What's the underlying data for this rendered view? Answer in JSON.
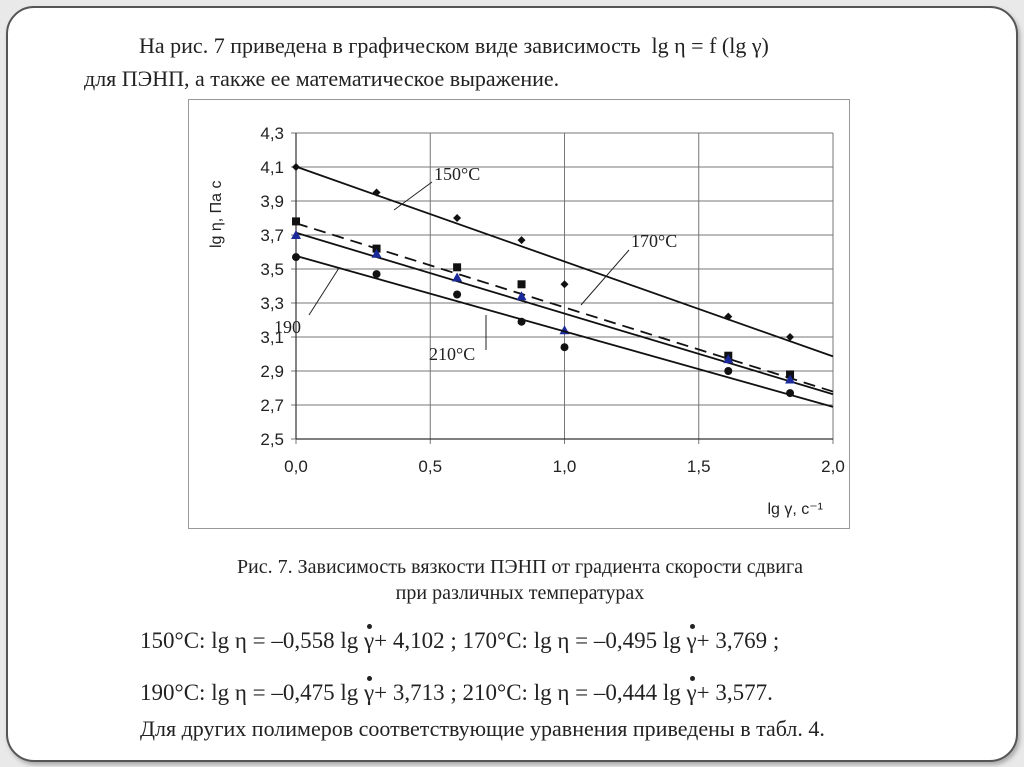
{
  "intro": {
    "line1": "На рис. 7 приведена в графическом виде  зависимость",
    "formula": "lg η = f (lg γ)",
    "line2": "для ПЭНП, а также ее математическое выражение."
  },
  "caption": {
    "line1": "Рис. 7. Зависимость вязкости ПЭНП от градиента скорости сдвига",
    "line2": "при различных температурах"
  },
  "equations": [
    {
      "temp": "150°C:",
      "lhs": "lg η = –0,558 lg",
      "rhs": "+ 4,102 ;"
    },
    {
      "temp": "170°C:",
      "lhs": "lg η = –0,495 lg",
      "rhs": "+ 3,769 ;"
    },
    {
      "temp": "190°C:",
      "lhs": "lg η = –0,475 lg",
      "rhs": "+ 3,713 ;"
    },
    {
      "temp": "210°C:",
      "lhs": "lg η = –0,444 lg",
      "rhs": "+ 3,577."
    }
  ],
  "gamma": "γ",
  "footer": "Для других полимеров соответствующие уравнения приведены в табл. 4.",
  "chart_data": {
    "type": "scatter",
    "xlabel": "lg γ, c⁻¹",
    "ylabel": "lg η, Па с",
    "xlim": [
      0,
      2
    ],
    "ylim": [
      2.5,
      4.3
    ],
    "xticks": [
      "0,0",
      "0,5",
      "1,0",
      "1,5",
      "2,0"
    ],
    "yticks": [
      "2,5",
      "2,7",
      "2,9",
      "3,1",
      "3,3",
      "3,5",
      "3,7",
      "3,9",
      "4,1",
      "4,3"
    ],
    "grid": true,
    "annotations": [
      "150°C",
      "170°C",
      "190",
      "210°C"
    ],
    "series": [
      {
        "name": "150°C",
        "marker": "diamond",
        "color": "#111111",
        "line": "solid",
        "slope": -0.558,
        "intercept": 4.102,
        "x": [
          0,
          0.3,
          0.6,
          0.84,
          1.0,
          1.61,
          1.84
        ],
        "y": [
          4.1,
          3.95,
          3.8,
          3.67,
          3.41,
          3.22,
          3.1
        ]
      },
      {
        "name": "170°C",
        "marker": "square",
        "color": "#111111",
        "line": "dashed",
        "slope": -0.495,
        "intercept": 3.769,
        "x": [
          0,
          0.3,
          0.6,
          0.84,
          1.61,
          1.84
        ],
        "y": [
          3.78,
          3.62,
          3.51,
          3.41,
          2.99,
          2.88
        ]
      },
      {
        "name": "190°C",
        "marker": "triangle",
        "color": "#1a2a9a",
        "line": "solid",
        "slope": -0.475,
        "intercept": 3.713,
        "x": [
          0,
          0.3,
          0.6,
          0.84,
          1.0,
          1.61,
          1.84
        ],
        "y": [
          3.7,
          3.59,
          3.45,
          3.34,
          3.14,
          2.97,
          2.85
        ]
      },
      {
        "name": "210°C",
        "marker": "circle",
        "color": "#111111",
        "line": "solid",
        "slope": -0.444,
        "intercept": 3.577,
        "x": [
          0,
          0.3,
          0.6,
          0.84,
          1.0,
          1.61,
          1.84
        ],
        "y": [
          3.57,
          3.47,
          3.35,
          3.19,
          3.04,
          2.9,
          2.77
        ]
      }
    ]
  }
}
